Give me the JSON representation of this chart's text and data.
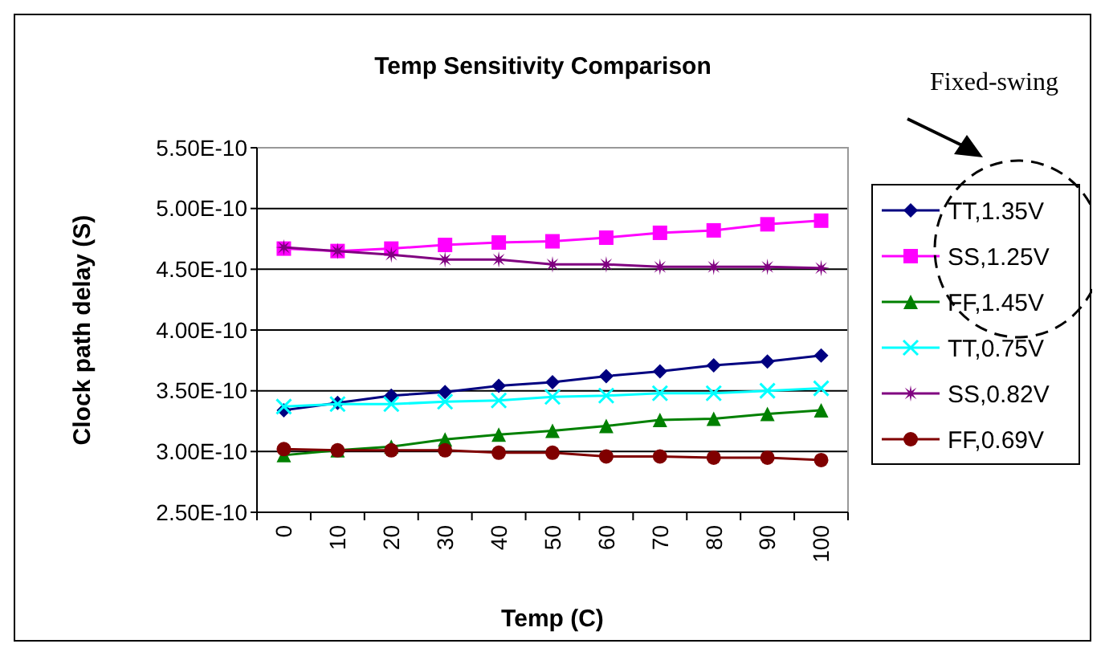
{
  "chart_data": {
    "type": "line",
    "title": "Temp Sensitivity Comparison",
    "xlabel": "Temp (C)",
    "ylabel": "Clock path delay (S)",
    "categories": [
      "0",
      "10",
      "20",
      "30",
      "40",
      "50",
      "60",
      "70",
      "80",
      "90",
      "100"
    ],
    "series": [
      {
        "name": "TT,1.35V",
        "color": "#000080",
        "marker": "diamond",
        "values": [
          3.34e-10,
          3.4e-10,
          3.46e-10,
          3.49e-10,
          3.54e-10,
          3.57e-10,
          3.62e-10,
          3.66e-10,
          3.71e-10,
          3.74e-10,
          3.79e-10
        ]
      },
      {
        "name": "SS,1.25V",
        "color": "#ff00ff",
        "marker": "square",
        "values": [
          4.67e-10,
          4.65e-10,
          4.67e-10,
          4.7e-10,
          4.72e-10,
          4.73e-10,
          4.76e-10,
          4.8e-10,
          4.82e-10,
          4.87e-10,
          4.9e-10
        ]
      },
      {
        "name": "FF,1.45V",
        "color": "#008000",
        "marker": "triangle",
        "values": [
          2.97e-10,
          3.01e-10,
          3.04e-10,
          3.1e-10,
          3.14e-10,
          3.17e-10,
          3.21e-10,
          3.26e-10,
          3.27e-10,
          3.31e-10,
          3.34e-10
        ]
      },
      {
        "name": "TT,0.75V",
        "color": "#00ffff",
        "marker": "cross",
        "values": [
          3.37e-10,
          3.39e-10,
          3.39e-10,
          3.41e-10,
          3.42e-10,
          3.45e-10,
          3.46e-10,
          3.48e-10,
          3.48e-10,
          3.5e-10,
          3.52e-10
        ]
      },
      {
        "name": "SS,0.82V",
        "color": "#800080",
        "marker": "star",
        "values": [
          4.68e-10,
          4.65e-10,
          4.62e-10,
          4.58e-10,
          4.58e-10,
          4.54e-10,
          4.54e-10,
          4.52e-10,
          4.52e-10,
          4.52e-10,
          4.51e-10
        ]
      },
      {
        "name": "FF,0.69V",
        "color": "#800000",
        "marker": "circle",
        "values": [
          3.02e-10,
          3.01e-10,
          3.01e-10,
          3.01e-10,
          2.99e-10,
          2.99e-10,
          2.96e-10,
          2.96e-10,
          2.95e-10,
          2.95e-10,
          2.93e-10
        ]
      }
    ],
    "ylim": [
      2.5e-10,
      5.5e-10
    ],
    "yticks": [
      {
        "value": 2.5e-10,
        "label": "2.50E-10"
      },
      {
        "value": 3e-10,
        "label": "3.00E-10"
      },
      {
        "value": 3.5e-10,
        "label": "3.50E-10"
      },
      {
        "value": 4e-10,
        "label": "4.00E-10"
      },
      {
        "value": 4.5e-10,
        "label": "4.50E-10"
      },
      {
        "value": 5e-10,
        "label": "5.00E-10"
      },
      {
        "value": 5.5e-10,
        "label": "5.50E-10"
      }
    ],
    "grid": "y",
    "legend": "right",
    "line_style": "solid",
    "annotations": [
      "Fixed-swing"
    ]
  }
}
